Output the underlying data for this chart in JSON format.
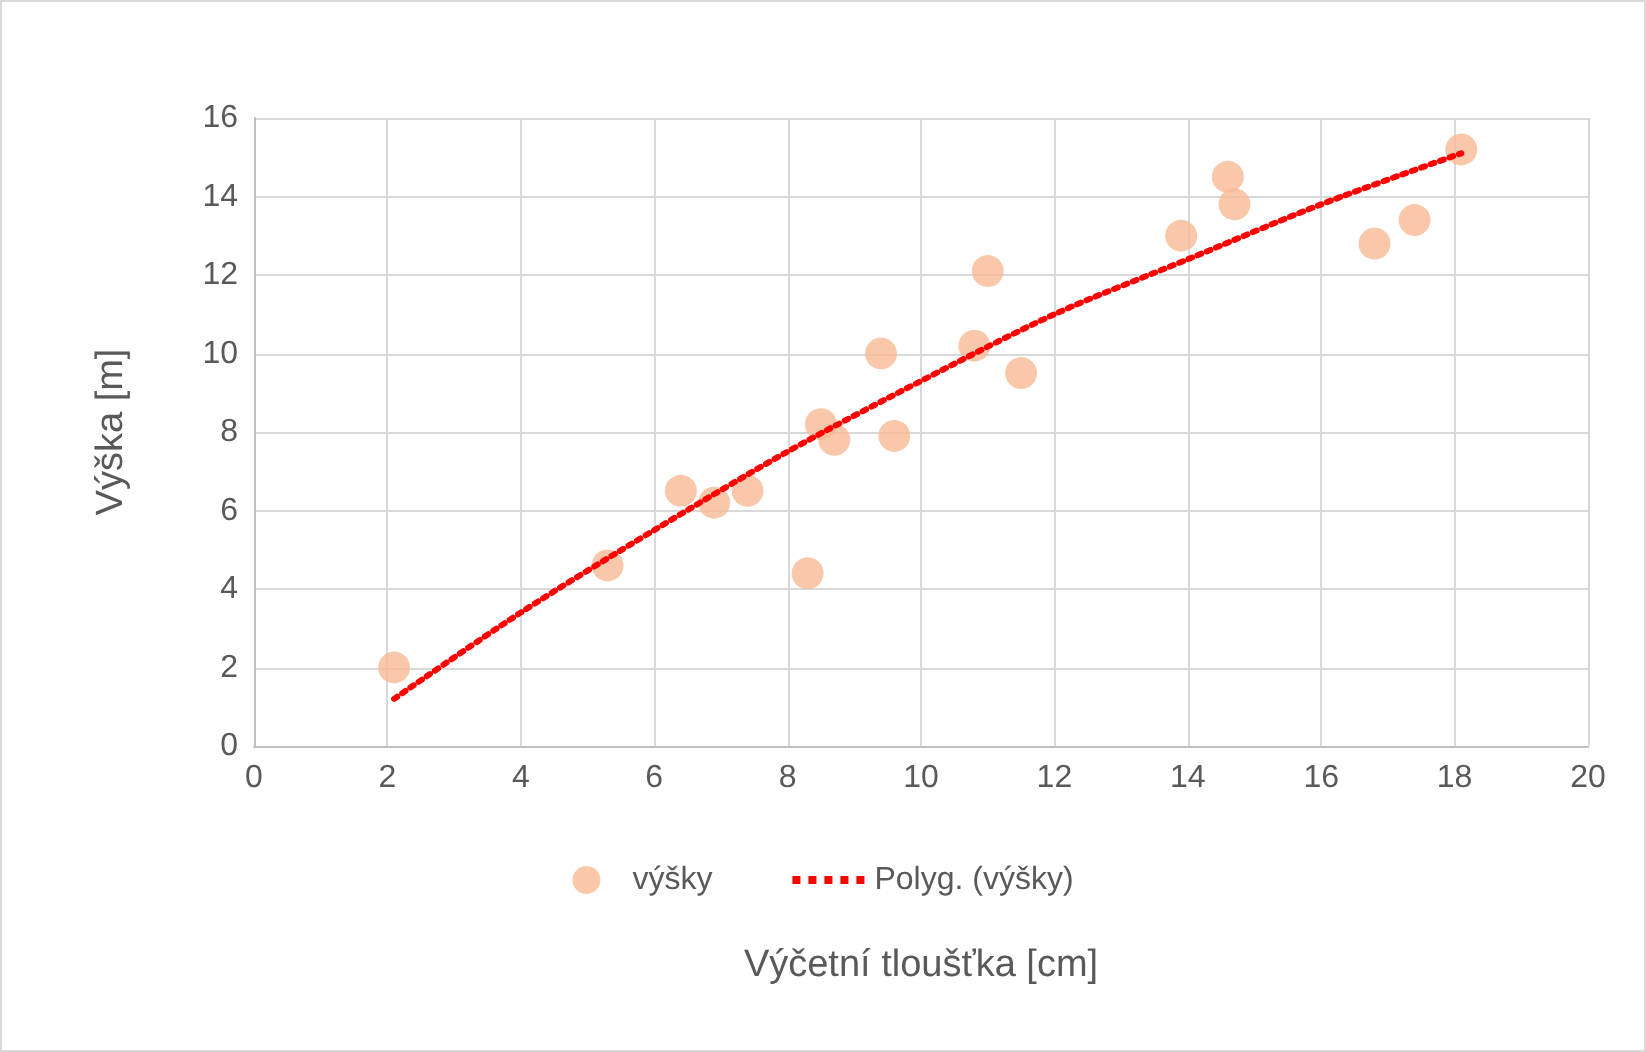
{
  "chart_data": {
    "type": "scatter",
    "xlabel": "Výčetní tloušťka [cm]",
    "ylabel": "Výška [m]",
    "xlim": [
      0,
      20
    ],
    "xticks": [
      0,
      2,
      4,
      6,
      8,
      10,
      12,
      14,
      16,
      18,
      20
    ],
    "ylim": [
      0,
      16
    ],
    "yticks": [
      0,
      2,
      4,
      6,
      8,
      10,
      12,
      14,
      16
    ],
    "grid": true,
    "legend": "bottom",
    "series": [
      {
        "name": "výšky",
        "color": "#f8b994",
        "marker": "circle",
        "x": [
          2.1,
          5.3,
          6.4,
          6.9,
          7.4,
          8.3,
          8.5,
          8.7,
          9.4,
          9.6,
          10.8,
          11.0,
          11.5,
          13.9,
          14.6,
          14.7,
          16.8,
          17.4,
          18.1
        ],
        "values": [
          2.0,
          4.6,
          6.5,
          6.2,
          6.5,
          4.4,
          8.2,
          7.8,
          10.0,
          7.9,
          10.2,
          12.1,
          9.5,
          13.0,
          14.5,
          13.8,
          12.8,
          13.4,
          15.2
        ]
      },
      {
        "name": "Polyg. (výšky)",
        "type": "line",
        "color": "#ff0000",
        "marker": "none",
        "line_style": "dotted",
        "x": [
          2.1,
          4,
          6,
          8,
          10,
          12,
          14,
          16,
          18.1
        ],
        "values": [
          1.2,
          3.4,
          5.5,
          7.5,
          9.3,
          11.0,
          12.4,
          13.8,
          15.1
        ]
      }
    ]
  }
}
